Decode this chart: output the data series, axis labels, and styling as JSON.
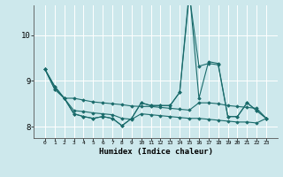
{
  "xlabel": "Humidex (Indice chaleur)",
  "background_color": "#cde8ec",
  "line_color": "#1a6b6b",
  "grid_color": "#ffffff",
  "x": [
    0,
    1,
    2,
    3,
    4,
    5,
    6,
    7,
    8,
    9,
    10,
    11,
    12,
    13,
    14,
    15,
    16,
    17,
    18,
    19,
    20,
    21,
    22,
    23
  ],
  "series1": [
    9.25,
    8.88,
    8.62,
    8.28,
    8.22,
    8.18,
    8.22,
    8.18,
    8.02,
    8.18,
    8.52,
    8.46,
    8.46,
    8.46,
    8.75,
    10.98,
    8.62,
    9.42,
    9.38,
    8.22,
    8.22,
    8.52,
    8.35,
    8.18
  ],
  "series2": [
    9.25,
    8.88,
    8.62,
    8.28,
    8.22,
    8.18,
    8.22,
    8.18,
    8.02,
    8.18,
    8.52,
    8.46,
    8.46,
    8.46,
    8.75,
    10.88,
    9.32,
    9.38,
    9.35,
    8.22,
    8.22,
    8.52,
    8.35,
    8.18
  ],
  "line1": [
    9.25,
    8.82,
    8.62,
    8.62,
    8.58,
    8.54,
    8.52,
    8.5,
    8.48,
    8.45,
    8.44,
    8.44,
    8.42,
    8.4,
    8.38,
    8.36,
    8.52,
    8.52,
    8.5,
    8.46,
    8.44,
    8.42,
    8.4,
    8.18
  ],
  "line2": [
    9.25,
    8.82,
    8.62,
    8.35,
    8.33,
    8.3,
    8.28,
    8.26,
    8.18,
    8.16,
    8.28,
    8.26,
    8.24,
    8.22,
    8.2,
    8.18,
    8.18,
    8.16,
    8.14,
    8.12,
    8.1,
    8.1,
    8.08,
    8.18
  ],
  "ylim": [
    7.75,
    10.65
  ],
  "yticks": [
    8,
    9,
    10
  ],
  "xticks": [
    0,
    1,
    2,
    3,
    4,
    5,
    6,
    7,
    8,
    9,
    10,
    11,
    12,
    13,
    14,
    15,
    16,
    17,
    18,
    19,
    20,
    21,
    22,
    23
  ]
}
